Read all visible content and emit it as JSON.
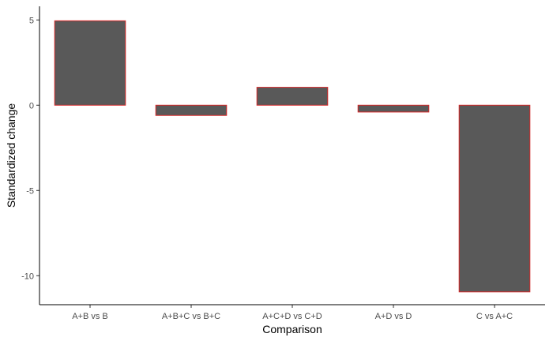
{
  "chart_data": {
    "type": "bar",
    "categories": [
      "A+B vs B",
      "A+B+C vs B+C",
      "A+C+D vs C+D",
      "A+D vs D",
      "C vs A+C"
    ],
    "values": [
      4.95,
      -0.6,
      1.05,
      -0.4,
      -10.95
    ],
    "title": "",
    "xlabel": "Comparison",
    "ylabel": "Standardized change",
    "ylim": [
      -11.7,
      5.8
    ],
    "yticks": [
      5,
      0,
      -5,
      -10
    ],
    "ytick_labels": [
      "5",
      "0",
      "-5",
      "-10"
    ],
    "grid": false,
    "bar_fill": "#595959",
    "bar_stroke": "#d62728"
  }
}
